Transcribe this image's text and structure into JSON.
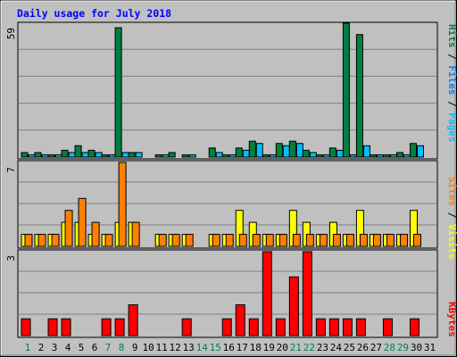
{
  "chart_data": [
    {
      "type": "bar",
      "title": "Daily usage for July 2018",
      "ymax_label": "59",
      "ylim": [
        0,
        59
      ],
      "series": [
        {
          "name": "Hits",
          "color": "#008040",
          "values": [
            2,
            2,
            1,
            3,
            5,
            3,
            1,
            57,
            2,
            0,
            1,
            2,
            1,
            0,
            4,
            1,
            4,
            7,
            1,
            6,
            7,
            3,
            1,
            4,
            59,
            54,
            1,
            1,
            2,
            6,
            0
          ]
        },
        {
          "name": "Files",
          "color": "#0080ff",
          "values": [
            0,
            0,
            0,
            0,
            0,
            0,
            0,
            0,
            0,
            0,
            0,
            0,
            0,
            0,
            0,
            0,
            0,
            0,
            0,
            0,
            0,
            0,
            0,
            0,
            0,
            0,
            0,
            0,
            0,
            0,
            0
          ]
        },
        {
          "name": "Pages",
          "color": "#00c0ff",
          "values": [
            1,
            1,
            1,
            2,
            2,
            2,
            1,
            2,
            2,
            0,
            1,
            0,
            1,
            0,
            2,
            1,
            3,
            6,
            1,
            5,
            6,
            2,
            1,
            3,
            1,
            5,
            1,
            1,
            1,
            5,
            0
          ]
        }
      ],
      "legend": "right-vertical"
    },
    {
      "type": "bar",
      "ymax_label": "7",
      "ylim": [
        0,
        7
      ],
      "series": [
        {
          "name": "Visits",
          "color": "#ffff00",
          "values": [
            1,
            1,
            1,
            2,
            2,
            1,
            1,
            2,
            2,
            0,
            1,
            1,
            1,
            0,
            1,
            1,
            3,
            2,
            1,
            1,
            3,
            2,
            1,
            2,
            1,
            3,
            1,
            1,
            1,
            3,
            0
          ]
        },
        {
          "name": "Sites",
          "color": "#ff8000",
          "values": [
            1,
            1,
            1,
            3,
            4,
            2,
            1,
            7,
            2,
            0,
            1,
            1,
            1,
            0,
            1,
            1,
            1,
            1,
            1,
            1,
            1,
            1,
            1,
            1,
            1,
            1,
            1,
            1,
            1,
            1,
            0
          ]
        }
      ],
      "legend": "right-vertical"
    },
    {
      "type": "bar",
      "ymax_label": "3",
      "ylim": [
        0,
        3
      ],
      "series": [
        {
          "name": "KBytes",
          "color": "#ff0000",
          "values": [
            0.6,
            0,
            0.6,
            0.6,
            0,
            0,
            0.6,
            0.6,
            1.1,
            0,
            0,
            0,
            0.6,
            0,
            0,
            0.6,
            1.1,
            0.6,
            3,
            0.6,
            2.1,
            3,
            0.6,
            0.6,
            0.6,
            0.6,
            0,
            0.6,
            0,
            0.6,
            0
          ]
        }
      ],
      "legend": "right-vertical"
    }
  ],
  "x_axis": {
    "days": [
      "1",
      "2",
      "3",
      "4",
      "5",
      "6",
      "7",
      "8",
      "9",
      "10",
      "11",
      "12",
      "13",
      "14",
      "15",
      "16",
      "17",
      "18",
      "19",
      "20",
      "21",
      "22",
      "23",
      "24",
      "25",
      "26",
      "27",
      "28",
      "29",
      "30",
      "31"
    ],
    "weekend_days": [
      "1",
      "7",
      "8",
      "14",
      "15",
      "21",
      "22",
      "28",
      "29"
    ],
    "weekday_color": "#000000",
    "weekend_color": "#00805c"
  },
  "colors": {
    "background": "#c0c0c0",
    "title": "#0000ff",
    "gridline": "#808080",
    "bar_outline": "#000000"
  }
}
